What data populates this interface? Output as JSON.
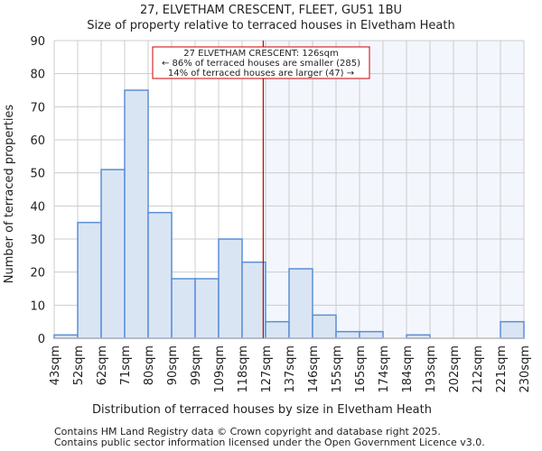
{
  "chart_data": {
    "type": "bar",
    "title": "27, ELVETHAM CRESCENT, FLEET, GU51 1BU",
    "subtitle": "Size of property relative to terraced houses in Elvetham Heath",
    "xlabel": "Distribution of terraced houses by size in Elvetham Heath",
    "ylabel": "Number of terraced properties",
    "bin_edges": [
      "43sqm",
      "52sqm",
      "62sqm",
      "71sqm",
      "80sqm",
      "90sqm",
      "99sqm",
      "109sqm",
      "118sqm",
      "127sqm",
      "137sqm",
      "146sqm",
      "155sqm",
      "165sqm",
      "174sqm",
      "184sqm",
      "193sqm",
      "202sqm",
      "212sqm",
      "221sqm",
      "230sqm"
    ],
    "values": [
      1,
      35,
      51,
      75,
      38,
      18,
      18,
      30,
      23,
      5,
      21,
      7,
      2,
      2,
      0,
      1,
      0,
      0,
      0,
      5
    ],
    "ylim": [
      0,
      90
    ],
    "yticks": [
      0,
      10,
      20,
      30,
      40,
      50,
      60,
      70,
      80,
      90
    ],
    "grid": true,
    "marker_bin_position": 8.9,
    "annotation": {
      "line1": "27 ELVETHAM CRESCENT: 126sqm",
      "line2": "← 86% of terraced houses are smaller (285)",
      "line3": "14% of terraced houses are larger (47) →"
    },
    "colors": {
      "bar_fill": "#dae5f4",
      "bar_stroke": "#5b8fd6",
      "marker": "#cc0000",
      "shade": "#f3f6fd",
      "grid": "#cccccc"
    }
  },
  "footer": {
    "line1": "Contains HM Land Registry data © Crown copyright and database right 2025.",
    "line2": "Contains public sector information licensed under the Open Government Licence v3.0."
  }
}
